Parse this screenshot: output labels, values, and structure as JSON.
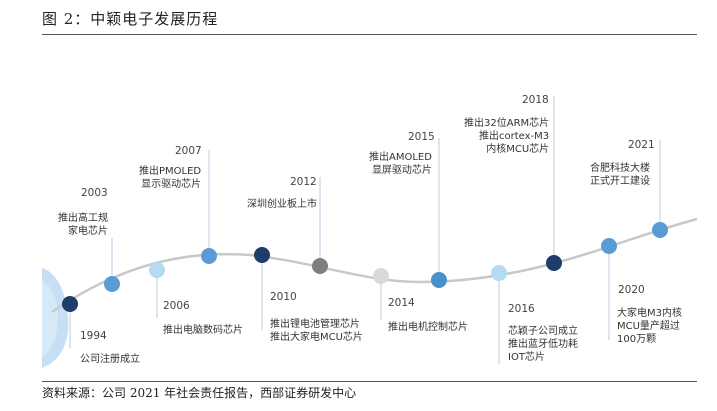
{
  "header": {
    "title": "图 2：中颖电子发展历程"
  },
  "footer": {
    "source": "资料来源：公司 2021 年社会责任报告，西部证券研发中心"
  },
  "colors": {
    "dark_node": "#1e3d6b",
    "mid_node": "#5b9bd5",
    "light_node": "#b3dbf2",
    "grey_node": "#7f7f7f",
    "pale_node": "#d9d9d9",
    "curve": "#c8c8c8",
    "connector": "#b7cde0",
    "globe": "#bcd9f2"
  },
  "milestones": [
    {
      "year": "1994",
      "lines": [
        "公司注册成立"
      ],
      "node_color": "#1e3d6b"
    },
    {
      "year": "2003",
      "lines": [
        "推出高工规",
        "家电芯片"
      ],
      "node_color": "#5b9bd5"
    },
    {
      "year": "2006",
      "lines": [
        "推出电脑数码芯片"
      ],
      "node_color": "#b3dbf2"
    },
    {
      "year": "2007",
      "lines": [
        "推出PMOLED",
        "显示驱动芯片"
      ],
      "node_color": "#5b9bd5"
    },
    {
      "year": "2010",
      "lines": [
        "推出锂电池管理芯片",
        "推出大家电MCU芯片"
      ],
      "node_color": "#1e3d6b"
    },
    {
      "year": "2012",
      "lines": [
        "深圳创业板上市"
      ],
      "node_color": "#7f7f7f"
    },
    {
      "year": "2014",
      "lines": [
        "推出电机控制芯片"
      ],
      "node_color": "#d9d9d9"
    },
    {
      "year": "2015",
      "lines": [
        "推出AMOLED",
        "显屏驱动芯片"
      ],
      "node_color": "#4a90c8"
    },
    {
      "year": "2016",
      "lines": [
        "芯颖子公司成立",
        "推出蓝牙低功耗",
        "IOT芯片"
      ],
      "node_color": "#b3dbf2"
    },
    {
      "year": "2018",
      "lines": [
        "推出32位ARM芯片",
        "推出cortex-M3",
        "内核MCU芯片"
      ],
      "node_color": "#1e3d6b"
    },
    {
      "year": "2020",
      "lines": [
        "大家电M3内核",
        "MCU量产超过",
        "100万颗"
      ],
      "node_color": "#5b9bd5"
    },
    {
      "year": "2021",
      "lines": [
        "合肥科技大楼",
        "正式开工建设"
      ],
      "node_color": "#5b9bd5"
    }
  ]
}
